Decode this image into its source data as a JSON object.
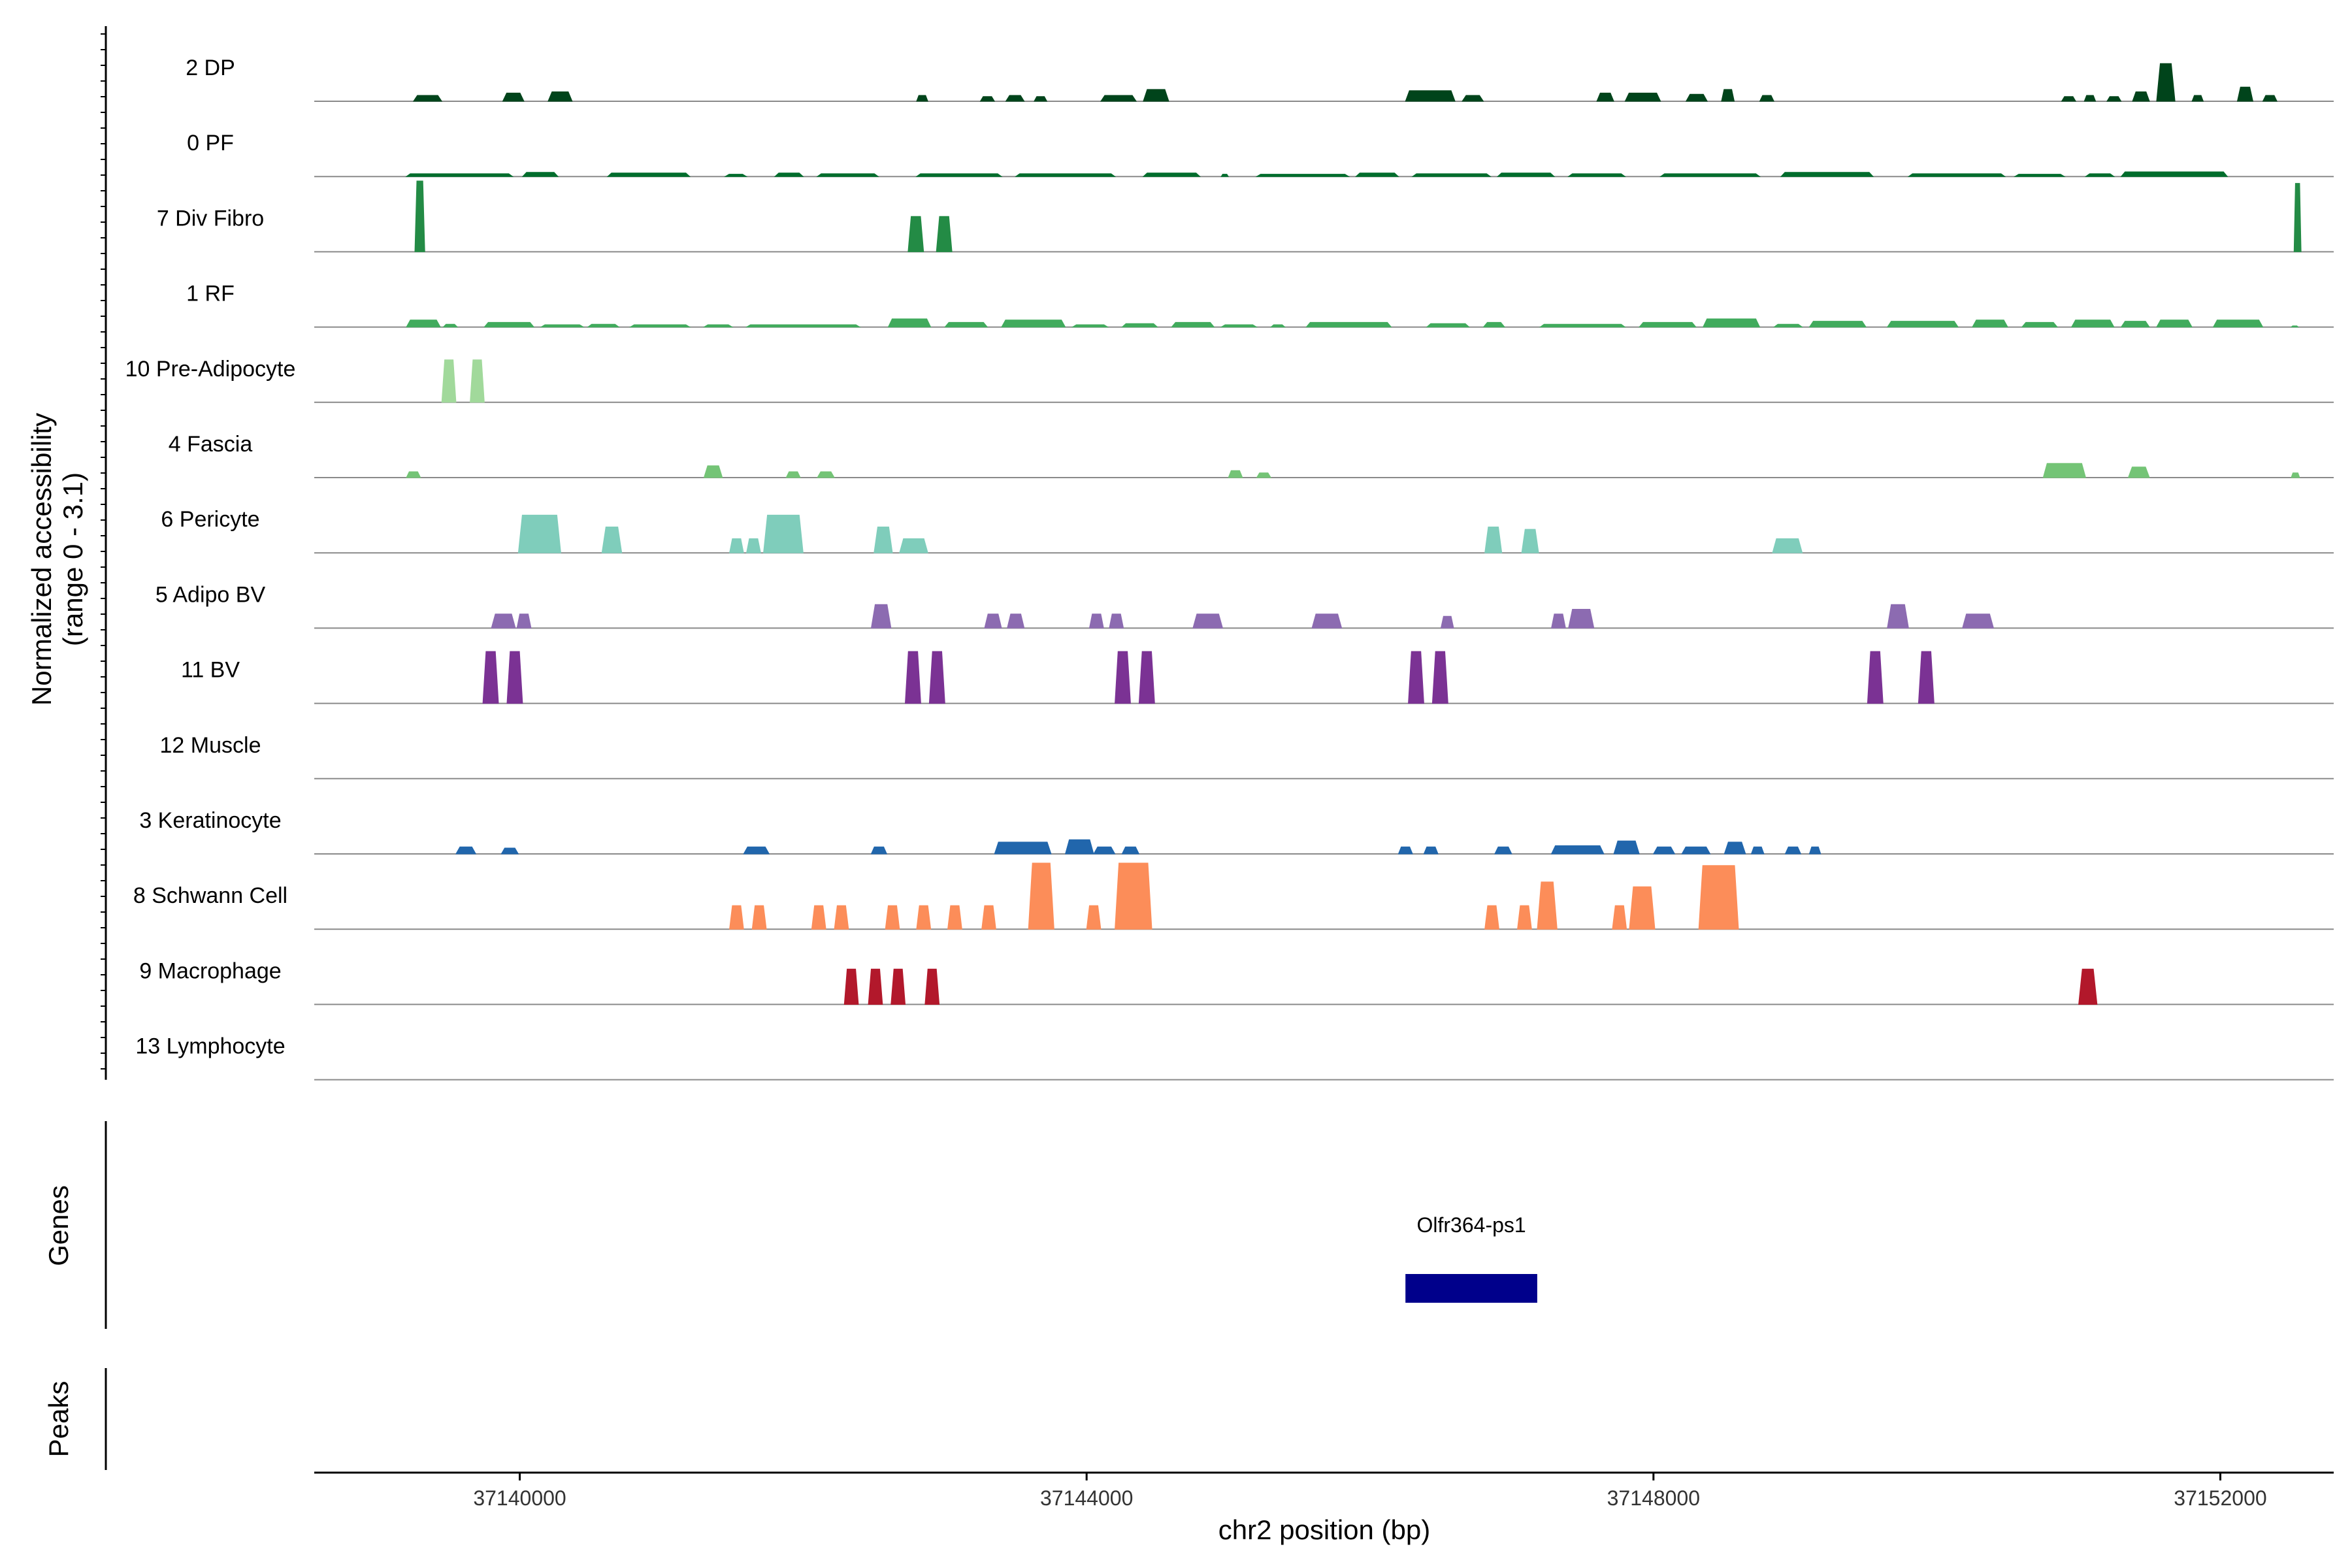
{
  "chart_data": {
    "type": "area",
    "title": "",
    "ylabel": "Normalized accessibility",
    "ylabel_sub": "(range 0 - 3.1)",
    "xlabel": "chr2 position (bp)",
    "xlim": [
      37138550,
      37152800
    ],
    "ylim": [
      0,
      3.1
    ],
    "x_ticks": [
      37140000,
      37144000,
      37148000,
      37152000
    ],
    "x_tick_labels": [
      "37140000",
      "37144000",
      "37148000",
      "37152000"
    ],
    "panels": [
      "Genes",
      "Peaks"
    ],
    "series": [
      {
        "name": "2 DP",
        "color": "#00441b",
        "peaks": [
          [
            37139250,
            37139450,
            0.25
          ],
          [
            37139880,
            37140030,
            0.35
          ],
          [
            37140200,
            37140370,
            0.4
          ],
          [
            37142800,
            37142880,
            0.25
          ],
          [
            37143250,
            37143350,
            0.2
          ],
          [
            37143430,
            37143560,
            0.25
          ],
          [
            37143630,
            37143720,
            0.2
          ],
          [
            37144100,
            37144350,
            0.25
          ],
          [
            37144400,
            37144580,
            0.5
          ],
          [
            37146250,
            37146600,
            0.45
          ],
          [
            37146650,
            37146800,
            0.25
          ],
          [
            37147600,
            37147720,
            0.35
          ],
          [
            37147800,
            37148050,
            0.35
          ],
          [
            37148230,
            37148380,
            0.3
          ],
          [
            37148480,
            37148570,
            0.5
          ],
          [
            37148750,
            37148850,
            0.25
          ],
          [
            37150880,
            37150980,
            0.2
          ],
          [
            37151040,
            37151120,
            0.25
          ],
          [
            37151200,
            37151300,
            0.2
          ],
          [
            37151380,
            37151500,
            0.4
          ],
          [
            37151550,
            37151680,
            1.6
          ],
          [
            37151800,
            37151880,
            0.25
          ],
          [
            37152120,
            37152230,
            0.6
          ],
          [
            37152300,
            37152400,
            0.25
          ]
        ]
      },
      {
        "name": "0 PF",
        "color": "#006d2c",
        "peaks": [
          [
            37139200,
            37139950,
            0.12
          ],
          [
            37140020,
            37140270,
            0.18
          ],
          [
            37140620,
            37141200,
            0.15
          ],
          [
            37141450,
            37141600,
            0.1
          ],
          [
            37141800,
            37142000,
            0.15
          ],
          [
            37142100,
            37142530,
            0.12
          ],
          [
            37142800,
            37143400,
            0.12
          ],
          [
            37143500,
            37144200,
            0.12
          ],
          [
            37144400,
            37144800,
            0.15
          ],
          [
            37144950,
            37145000,
            0.1
          ],
          [
            37145200,
            37145850,
            0.1
          ],
          [
            37145900,
            37146200,
            0.15
          ],
          [
            37146300,
            37146850,
            0.12
          ],
          [
            37146900,
            37147300,
            0.15
          ],
          [
            37147400,
            37147800,
            0.12
          ],
          [
            37148050,
            37148750,
            0.12
          ],
          [
            37148900,
            37149550,
            0.18
          ],
          [
            37149800,
            37150480,
            0.12
          ],
          [
            37150550,
            37150900,
            0.1
          ],
          [
            37151050,
            37151250,
            0.12
          ],
          [
            37151300,
            37152050,
            0.2
          ]
        ]
      },
      {
        "name": "7 Div Fibro",
        "color": "#238b45",
        "peaks": [
          [
            37139260,
            37139330,
            3.0
          ],
          [
            37142740,
            37142850,
            1.5
          ],
          [
            37142940,
            37143050,
            1.5
          ],
          [
            37152520,
            37152570,
            2.9
          ]
        ]
      },
      {
        "name": "1 RF",
        "color": "#41ab5d",
        "peaks": [
          [
            37139200,
            37139440,
            0.3
          ],
          [
            37139460,
            37139560,
            0.12
          ],
          [
            37139750,
            37140100,
            0.2
          ],
          [
            37140150,
            37140450,
            0.1
          ],
          [
            37140480,
            37140700,
            0.12
          ],
          [
            37140780,
            37141200,
            0.1
          ],
          [
            37141300,
            37141500,
            0.1
          ],
          [
            37141600,
            37142400,
            0.1
          ],
          [
            37142600,
            37142900,
            0.35
          ],
          [
            37143000,
            37143300,
            0.2
          ],
          [
            37143400,
            37143850,
            0.3
          ],
          [
            37143900,
            37144150,
            0.1
          ],
          [
            37144250,
            37144500,
            0.15
          ],
          [
            37144600,
            37144900,
            0.2
          ],
          [
            37144950,
            37145200,
            0.1
          ],
          [
            37145300,
            37145400,
            0.1
          ],
          [
            37145550,
            37146150,
            0.2
          ],
          [
            37146400,
            37146700,
            0.15
          ],
          [
            37146800,
            37146950,
            0.2
          ],
          [
            37147200,
            37147800,
            0.12
          ],
          [
            37147900,
            37148300,
            0.2
          ],
          [
            37148350,
            37148750,
            0.35
          ],
          [
            37148850,
            37149050,
            0.12
          ],
          [
            37149100,
            37149500,
            0.25
          ],
          [
            37149650,
            37150150,
            0.25
          ],
          [
            37150250,
            37150500,
            0.3
          ],
          [
            37150600,
            37150850,
            0.2
          ],
          [
            37150950,
            37151250,
            0.3
          ],
          [
            37151300,
            37151500,
            0.25
          ],
          [
            37151550,
            37151800,
            0.3
          ],
          [
            37151950,
            37152300,
            0.3
          ],
          [
            37152500,
            37152550,
            0.05
          ]
        ]
      },
      {
        "name": "10 Pre-Adipocyte",
        "color": "#a1d99b",
        "peaks": [
          [
            37139450,
            37139550,
            1.8
          ],
          [
            37139650,
            37139750,
            1.8
          ]
        ]
      },
      {
        "name": "4 Fascia",
        "color": "#74c476",
        "peaks": [
          [
            37139200,
            37139300,
            0.25
          ],
          [
            37141300,
            37141430,
            0.5
          ],
          [
            37141880,
            37141980,
            0.25
          ],
          [
            37142100,
            37142220,
            0.25
          ],
          [
            37145000,
            37145100,
            0.3
          ],
          [
            37145200,
            37145300,
            0.2
          ],
          [
            37150750,
            37151050,
            0.6
          ],
          [
            37151350,
            37151500,
            0.45
          ],
          [
            37152500,
            37152560,
            0.2
          ]
        ]
      },
      {
        "name": "6 Pericyte",
        "color": "#7fcdbb",
        "peaks": [
          [
            37139990,
            37140290,
            1.6
          ],
          [
            37140580,
            37140720,
            1.1
          ],
          [
            37141480,
            37141580,
            0.6
          ],
          [
            37141600,
            37141700,
            0.6
          ],
          [
            37141720,
            37142000,
            1.6
          ],
          [
            37142500,
            37142630,
            1.1
          ],
          [
            37142680,
            37142880,
            0.6
          ],
          [
            37146810,
            37146930,
            1.1
          ],
          [
            37147070,
            37147190,
            1.0
          ],
          [
            37148840,
            37149050,
            0.6
          ]
        ]
      },
      {
        "name": "5 Adipo BV",
        "color": "#8c6bb1",
        "peaks": [
          [
            37139800,
            37139970,
            0.6
          ],
          [
            37139980,
            37140080,
            0.6
          ],
          [
            37142480,
            37142620,
            1.0
          ],
          [
            37143280,
            37143400,
            0.6
          ],
          [
            37143440,
            37143560,
            0.6
          ],
          [
            37144020,
            37144120,
            0.6
          ],
          [
            37144160,
            37144260,
            0.6
          ],
          [
            37144750,
            37144960,
            0.6
          ],
          [
            37145590,
            37145800,
            0.6
          ],
          [
            37146500,
            37146590,
            0.5
          ],
          [
            37147280,
            37147380,
            0.6
          ],
          [
            37147400,
            37147580,
            0.8
          ],
          [
            37149650,
            37149800,
            1.0
          ],
          [
            37150180,
            37150400,
            0.6
          ]
        ]
      },
      {
        "name": "11 BV",
        "color": "#7b3294",
        "peaks": [
          [
            37139740,
            37139850,
            2.2
          ],
          [
            37139910,
            37140020,
            2.2
          ],
          [
            37142720,
            37142830,
            2.2
          ],
          [
            37142890,
            37143000,
            2.2
          ],
          [
            37144200,
            37144310,
            2.2
          ],
          [
            37144370,
            37144480,
            2.2
          ],
          [
            37146270,
            37146380,
            2.2
          ],
          [
            37146440,
            37146550,
            2.2
          ],
          [
            37149510,
            37149620,
            2.2
          ],
          [
            37149870,
            37149980,
            2.2
          ]
        ]
      },
      {
        "name": "12 Muscle",
        "color": "#7b3294",
        "peaks": []
      },
      {
        "name": "3 Keratinocyte",
        "color": "#2166ac",
        "peaks": [
          [
            37139550,
            37139690,
            0.3
          ],
          [
            37139870,
            37139990,
            0.25
          ],
          [
            37141580,
            37141760,
            0.3
          ],
          [
            37142480,
            37142590,
            0.3
          ],
          [
            37143350,
            37143750,
            0.5
          ],
          [
            37143850,
            37144050,
            0.6
          ],
          [
            37144050,
            37144200,
            0.3
          ],
          [
            37144250,
            37144370,
            0.3
          ],
          [
            37146200,
            37146300,
            0.3
          ],
          [
            37146380,
            37146480,
            0.3
          ],
          [
            37146880,
            37147000,
            0.3
          ],
          [
            37147280,
            37147650,
            0.35
          ],
          [
            37147720,
            37147900,
            0.55
          ],
          [
            37148000,
            37148150,
            0.3
          ],
          [
            37148200,
            37148400,
            0.3
          ],
          [
            37148500,
            37148650,
            0.5
          ],
          [
            37148690,
            37148780,
            0.3
          ],
          [
            37148930,
            37149040,
            0.3
          ],
          [
            37149100,
            37149180,
            0.3
          ]
        ]
      },
      {
        "name": "8 Schwann Cell",
        "color": "#fc8d59",
        "peaks": [
          [
            37141480,
            37141580,
            1.0
          ],
          [
            37141640,
            37141740,
            1.0
          ],
          [
            37142060,
            37142160,
            1.0
          ],
          [
            37142220,
            37142320,
            1.0
          ],
          [
            37142580,
            37142680,
            1.0
          ],
          [
            37142800,
            37142900,
            1.0
          ],
          [
            37143020,
            37143120,
            1.0
          ],
          [
            37143260,
            37143360,
            1.0
          ],
          [
            37143590,
            37143770,
            2.8
          ],
          [
            37144000,
            37144100,
            1.0
          ],
          [
            37144200,
            37144460,
            2.8
          ],
          [
            37146810,
            37146910,
            1.0
          ],
          [
            37147040,
            37147140,
            1.0
          ],
          [
            37147180,
            37147320,
            2.0
          ],
          [
            37147710,
            37147810,
            1.0
          ],
          [
            37147830,
            37148010,
            1.8
          ],
          [
            37148320,
            37148600,
            2.7
          ]
        ]
      },
      {
        "name": "9 Macrophage",
        "color": "#b2182b",
        "peaks": [
          [
            37142290,
            37142390,
            1.5
          ],
          [
            37142460,
            37142560,
            1.5
          ],
          [
            37142620,
            37142720,
            1.5
          ],
          [
            37142860,
            37142960,
            1.5
          ],
          [
            37151000,
            37151130,
            1.5
          ]
        ]
      },
      {
        "name": "13 Lymphocyte",
        "color": "#b2182b",
        "peaks": []
      }
    ],
    "genes": [
      {
        "name": "Olfr364-ps1",
        "start": 37146250,
        "end": 37147180
      }
    ],
    "peaks_track": []
  }
}
